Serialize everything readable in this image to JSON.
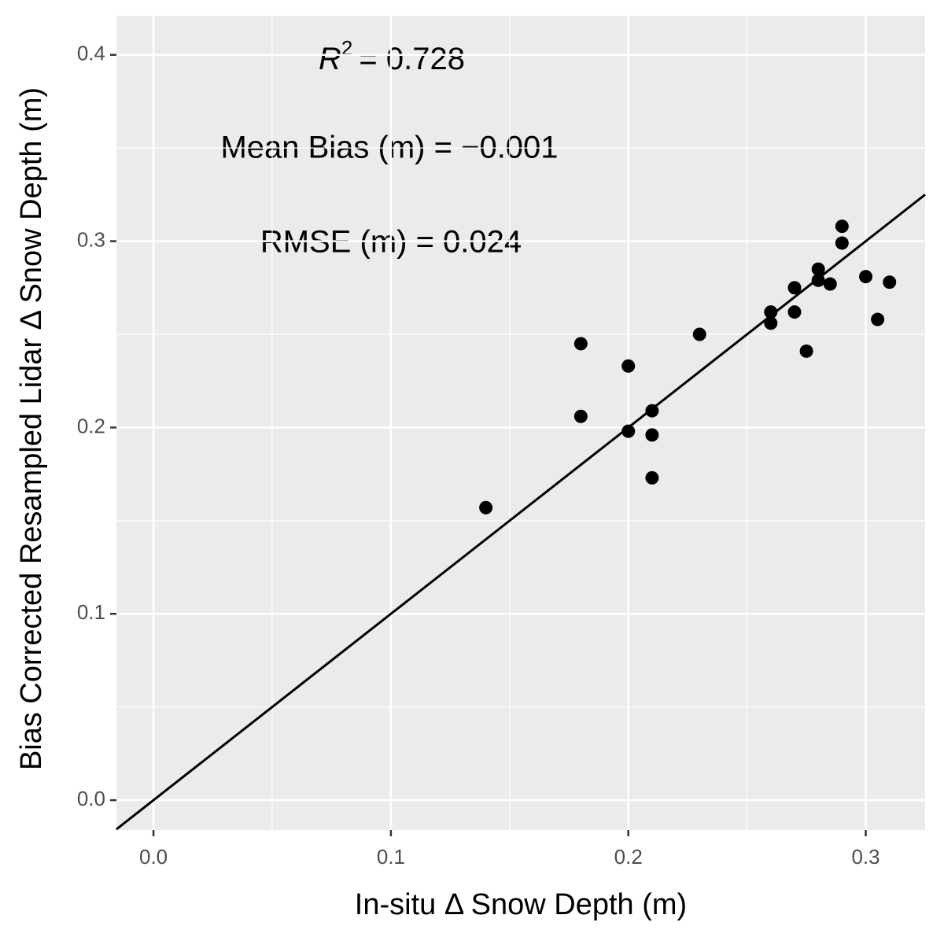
{
  "chart_data": {
    "type": "scatter",
    "x_label": "In-situ Δ Snow Depth (m)",
    "y_label": "Bias Corrected Resampled Lidar Δ Snow Depth (m)",
    "annotations": {
      "r2": {
        "symbol": "R",
        "superscript": "2",
        "text": "= 0.728"
      },
      "bias": "Mean Bias (m) = −0.001",
      "rmse": "RMSE (m) = 0.024"
    },
    "x": [
      0.14,
      0.18,
      0.18,
      0.2,
      0.2,
      0.21,
      0.21,
      0.21,
      0.23,
      0.26,
      0.26,
      0.27,
      0.27,
      0.275,
      0.28,
      0.28,
      0.285,
      0.29,
      0.29,
      0.3,
      0.305,
      0.31
    ],
    "values": [
      0.157,
      0.245,
      0.206,
      0.233,
      0.198,
      0.209,
      0.196,
      0.173,
      0.25,
      0.262,
      0.256,
      0.275,
      0.262,
      0.241,
      0.285,
      0.279,
      0.277,
      0.308,
      0.299,
      0.281,
      0.258,
      0.278
    ],
    "color": "#000000",
    "reference_line": {
      "slope": 1,
      "intercept": 0
    },
    "xlim": [
      -0.0156,
      0.325
    ],
    "ylim": [
      -0.016,
      0.421
    ],
    "xticks": [
      {
        "value": 0,
        "label": "0.0"
      },
      0.1,
      0.2,
      0.3
    ],
    "yticks": [
      {
        "value": 0,
        "label": "0.0"
      },
      0.1,
      0.2,
      0.3,
      0.4
    ],
    "minor_xticks": [
      0.05,
      0.15,
      0.25
    ],
    "minor_yticks": [
      0.05,
      0.15,
      0.25,
      0.35
    ],
    "grid": true
  }
}
